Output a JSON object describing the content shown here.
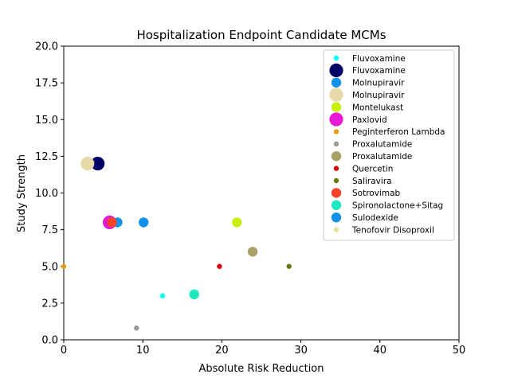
{
  "chart_data": {
    "type": "scatter",
    "title": "Hospitalization Endpoint Candidate MCMs",
    "xlabel": "Absolute Risk Reduction",
    "ylabel": "Study Strength",
    "xlim": [
      0,
      50
    ],
    "ylim": [
      0,
      20
    ],
    "xticks": [
      "0",
      "10",
      "20",
      "30",
      "40",
      "50"
    ],
    "yticks": [
      "0.0",
      "2.5",
      "5.0",
      "7.5",
      "10.0",
      "12.5",
      "15.0",
      "17.5",
      "20.0"
    ],
    "grid": false,
    "legend_position": "top-right",
    "series": [
      {
        "name": "Fluvoxamine",
        "color": "#00ffff",
        "size": "small",
        "points": [
          {
            "x": 12.5,
            "y": 3.0
          }
        ]
      },
      {
        "name": "Fluvoxamine",
        "color": "#000066",
        "size": "large",
        "points": [
          {
            "x": 4.3,
            "y": 12.0
          }
        ]
      },
      {
        "name": "Molnupiravir",
        "color": "#1192e8",
        "size": "medium",
        "points": [
          {
            "x": 6.8,
            "y": 8.0
          },
          {
            "x": 10.1,
            "y": 8.0
          }
        ]
      },
      {
        "name": "Molnupiravir",
        "color": "#e8d9a8",
        "size": "large",
        "points": [
          {
            "x": 3.0,
            "y": 12.0
          }
        ]
      },
      {
        "name": "Montelukast",
        "color": "#c8f00f",
        "size": "medium",
        "points": [
          {
            "x": 21.9,
            "y": 8.0
          }
        ]
      },
      {
        "name": "Paxlovid",
        "color": "#e619d4",
        "size": "large",
        "points": [
          {
            "x": 5.8,
            "y": 8.0
          }
        ]
      },
      {
        "name": "Peginterferon Lambda",
        "color": "#e0a010",
        "size": "small",
        "points": [
          {
            "x": 0.0,
            "y": 5.0
          }
        ]
      },
      {
        "name": "Proxalutamide",
        "color": "#999999",
        "size": "small",
        "points": [
          {
            "x": 9.2,
            "y": 0.8
          }
        ]
      },
      {
        "name": "Proxalutamide",
        "color": "#a8a064",
        "size": "medium",
        "points": [
          {
            "x": 23.9,
            "y": 6.0
          }
        ]
      },
      {
        "name": "Quercetin",
        "color": "#dd0000",
        "size": "small",
        "points": [
          {
            "x": 19.7,
            "y": 5.0
          }
        ]
      },
      {
        "name": "Saliravira",
        "color": "#6b7a10",
        "size": "small",
        "points": [
          {
            "x": 28.5,
            "y": 5.0
          }
        ]
      },
      {
        "name": "Sotrovimab",
        "color": "#f5432a",
        "size": "medium",
        "points": [
          {
            "x": 6.1,
            "y": 8.0
          }
        ]
      },
      {
        "name": "Spironolactone+Sitag",
        "color": "#1ee8c0",
        "size": "medium",
        "points": [
          {
            "x": 16.5,
            "y": 3.1
          }
        ]
      },
      {
        "name": "Sulodexide",
        "color": "#1192e8",
        "size": "medium",
        "points": []
      },
      {
        "name": "Tenofovir Disoproxil",
        "color": "#eddca0",
        "size": "small",
        "points": []
      }
    ]
  }
}
